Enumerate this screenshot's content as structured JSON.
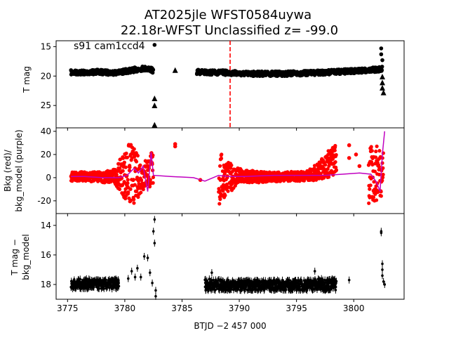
{
  "figure": {
    "title_line1": "AT2025jle  WFST0584uywa",
    "title_line2": "22.18r-WFST Unclassified z= -99.0",
    "xlabel": "BTJD −2 457 000"
  },
  "panel_top": {
    "ylabel": "T mag",
    "annotation": "s91 cam1ccd4"
  },
  "panel_mid": {
    "ylabel_line1": "Bkg (red)/",
    "ylabel_line2": "bkg_model (purple)"
  },
  "panel_bot": {
    "ylabel_line1": "T mag −",
    "ylabel_line2": "bkg_model"
  },
  "chart_data": [
    {
      "type": "scatter",
      "panel": "top",
      "title": "AT2025jle  WFST0584uywa\n22.18r-WFST Unclassified z= -99.0",
      "ylabel": "T mag",
      "xlim": [
        3774.0,
        3804.4
      ],
      "ylim": [
        28.8,
        14.0
      ],
      "inverted_y": true,
      "xticks": [
        3775,
        3780,
        3785,
        3790,
        3795,
        3800
      ],
      "yticks": [
        15,
        20,
        25
      ],
      "vline": {
        "x": 3789.2,
        "color": "#ff0000",
        "style": "dashed"
      },
      "series": [
        {
          "marker": "circle",
          "color": "#000000",
          "segments": [
            {
              "x": [
                3775.3,
                3776.5,
                3777.5,
                3778.5,
                3779.5,
                3780.3,
                3781.0,
                3781.6,
                3782.2,
                3782.5
              ],
              "y": [
                19.4,
                19.4,
                19.3,
                19.4,
                19.4,
                19.1,
                18.9,
                18.7,
                18.8,
                19.2
              ]
            },
            {
              "x": [
                3786.3,
                3787.5,
                3788.5,
                3789.5,
                3790.5,
                3792.0,
                3794.0,
                3796.0,
                3797.5,
                3798.5,
                3799.5,
                3800.5,
                3801.3,
                3802.0,
                3802.5
              ],
              "y": [
                19.3,
                19.4,
                19.4,
                19.5,
                19.6,
                19.6,
                19.6,
                19.5,
                19.4,
                19.3,
                19.2,
                19.1,
                19.0,
                18.9,
                18.8
              ]
            }
          ],
          "extra_points": [
            {
              "x": 3802.4,
              "y": 15.3
            },
            {
              "x": 3802.4,
              "y": 16.3
            },
            {
              "x": 3802.5,
              "y": 17.3
            },
            {
              "x": 3782.6,
              "y": 14.7
            }
          ]
        },
        {
          "marker": "triangle",
          "color": "#000000",
          "points": [
            {
              "x": 3782.6,
              "y": 23.9
            },
            {
              "x": 3782.6,
              "y": 25.1
            },
            {
              "x": 3782.6,
              "y": 28.4
            },
            {
              "x": 3784.4,
              "y": 19.1
            },
            {
              "x": 3802.5,
              "y": 20.2
            },
            {
              "x": 3802.5,
              "y": 21.2
            },
            {
              "x": 3802.5,
              "y": 22.1
            },
            {
              "x": 3802.6,
              "y": 22.9
            }
          ]
        }
      ]
    },
    {
      "type": "scatter",
      "panel": "middle",
      "ylabel": "Bkg (red)/ bkg_model (purple)",
      "xlim": [
        3774.0,
        3804.4
      ],
      "ylim": [
        -31.0,
        43.0
      ],
      "xticks": [
        3775,
        3780,
        3785,
        3790,
        3795,
        3800
      ],
      "yticks": [
        -20,
        0,
        20,
        40
      ],
      "series": [
        {
          "name": "Bkg",
          "marker": "circle",
          "color": "#ff0000",
          "band_x": [
            3775.3,
            3776.5,
            3778.0,
            3779.2,
            3780.0,
            3780.5,
            3781.0,
            3781.5,
            3782.0,
            3782.5
          ],
          "band_lo": [
            -3,
            -3,
            -4,
            -6,
            -18,
            -26,
            -20,
            -12,
            -8,
            -10
          ],
          "band_hi": [
            5,
            5,
            5,
            8,
            24,
            32,
            22,
            14,
            18,
            25
          ],
          "band2_x": [
            3788.2,
            3788.8,
            3790.0,
            3792.0,
            3794.0,
            3796.0,
            3797.0,
            3797.8,
            3798.5
          ],
          "band2_lo": [
            -28,
            -15,
            -6,
            -4,
            -3,
            -3,
            -2,
            0,
            2
          ],
          "band2_hi": [
            25,
            15,
            8,
            5,
            5,
            6,
            14,
            24,
            30
          ],
          "band3_x": [
            3801.3,
            3801.8,
            3802.3,
            3802.6
          ],
          "band3_lo": [
            -28,
            -22,
            -18,
            -12
          ],
          "band3_hi": [
            28,
            26,
            30,
            24
          ],
          "extra_points": [
            {
              "x": 3784.4,
              "y": 29
            },
            {
              "x": 3784.4,
              "y": 27
            },
            {
              "x": 3786.6,
              "y": -2
            },
            {
              "x": 3799.6,
              "y": 28
            },
            {
              "x": 3799.6,
              "y": 17
            },
            {
              "x": 3800.2,
              "y": 20
            },
            {
              "x": 3800.5,
              "y": 10
            }
          ]
        },
        {
          "name": "bkg_model",
          "type": "line",
          "color": "#c000c0",
          "x": [
            3775.3,
            3776.5,
            3778.0,
            3779.5,
            3780.2,
            3780.8,
            3781.2,
            3781.6,
            3782.0,
            3782.3,
            3782.5,
            3784.0,
            3786.0,
            3787.0,
            3788.2,
            3789.0,
            3790.5,
            3793.0,
            3795.5,
            3797.5,
            3799.0,
            3800.5,
            3801.5,
            3802.0,
            3802.3,
            3802.5,
            3802.7
          ],
          "y": [
            1,
            1,
            0,
            0,
            2,
            8,
            4,
            10,
            -12,
            22,
            2,
            1,
            0,
            -3,
            2,
            1,
            1,
            2,
            2,
            2,
            3,
            4,
            3,
            -4,
            -12,
            20,
            40
          ]
        }
      ]
    },
    {
      "type": "scatter",
      "panel": "bottom",
      "ylabel": "T mag − bkg_model",
      "xlabel": "BTJD −2 457 000",
      "xlim": [
        3774.0,
        3804.4
      ],
      "ylim": [
        19.0,
        13.2
      ],
      "inverted_y": true,
      "xticks": [
        3775,
        3780,
        3785,
        3790,
        3795,
        3800
      ],
      "yticks": [
        14,
        16,
        18
      ],
      "series": [
        {
          "marker": "circle_errorbar",
          "color": "#000000",
          "band_x": [
            3775.3,
            3776.5,
            3778.0,
            3779.5
          ],
          "band_lo": [
            18.3,
            18.3,
            18.3,
            18.3
          ],
          "band_hi": [
            17.7,
            17.6,
            17.7,
            17.6
          ],
          "band2_x": [
            3787.0,
            3789.0,
            3791.0,
            3793.0,
            3795.0,
            3797.0,
            3798.5
          ],
          "band2_lo": [
            18.4,
            18.4,
            18.4,
            18.4,
            18.4,
            18.4,
            18.4
          ],
          "band2_hi": [
            17.6,
            17.7,
            17.7,
            17.7,
            17.7,
            17.6,
            17.6
          ],
          "points": [
            {
              "x": 3780.3,
              "y": 17.6
            },
            {
              "x": 3780.6,
              "y": 17.1
            },
            {
              "x": 3780.9,
              "y": 17.5
            },
            {
              "x": 3781.1,
              "y": 16.9
            },
            {
              "x": 3781.4,
              "y": 17.5
            },
            {
              "x": 3781.7,
              "y": 16.1
            },
            {
              "x": 3782.0,
              "y": 16.2
            },
            {
              "x": 3782.2,
              "y": 17.2
            },
            {
              "x": 3782.4,
              "y": 17.9
            },
            {
              "x": 3782.5,
              "y": 14.4
            },
            {
              "x": 3782.6,
              "y": 13.6
            },
            {
              "x": 3782.6,
              "y": 15.2
            },
            {
              "x": 3782.7,
              "y": 18.4
            },
            {
              "x": 3782.7,
              "y": 18.8
            },
            {
              "x": 3787.6,
              "y": 17.2
            },
            {
              "x": 3796.6,
              "y": 17.1
            },
            {
              "x": 3799.6,
              "y": 17.7
            },
            {
              "x": 3802.4,
              "y": 14.4
            },
            {
              "x": 3802.4,
              "y": 14.5
            },
            {
              "x": 3802.5,
              "y": 16.6
            },
            {
              "x": 3802.5,
              "y": 17.0
            },
            {
              "x": 3802.5,
              "y": 17.4
            },
            {
              "x": 3802.6,
              "y": 17.8
            },
            {
              "x": 3802.7,
              "y": 18.0
            }
          ]
        }
      ]
    }
  ]
}
